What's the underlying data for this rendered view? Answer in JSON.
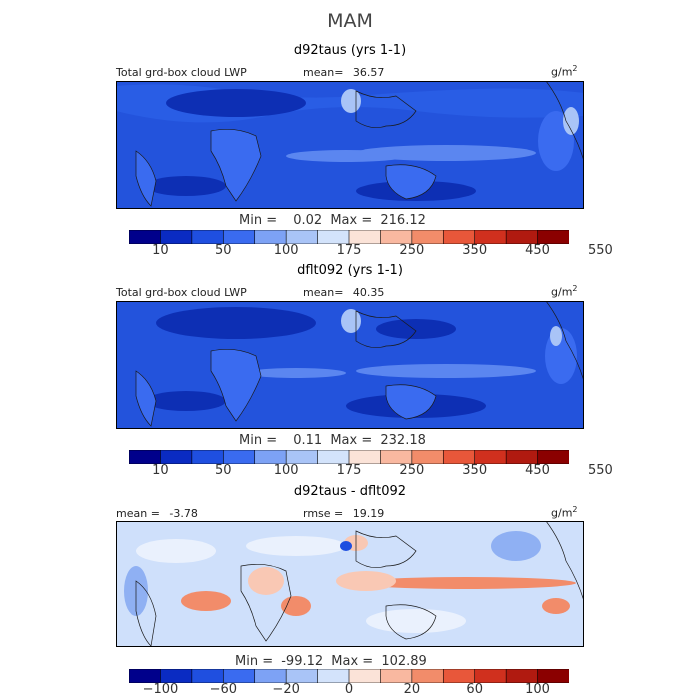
{
  "title": "MAM",
  "panels": [
    {
      "id": "top",
      "subtitle": "d92taus (yrs 1-1)",
      "left_label": "Total grd-box cloud LWP",
      "mean_label": "mean=",
      "mean_value": "36.57",
      "units": "g/m",
      "units_sup": "2",
      "min_label": "Min =",
      "min_value": "0.02",
      "max_label": "Max =",
      "max_value": "216.12"
    },
    {
      "id": "middle",
      "subtitle": "dflt092 (yrs 1-1)",
      "left_label": "Total grd-box cloud LWP",
      "mean_label": "mean=",
      "mean_value": "40.35",
      "units": "g/m",
      "units_sup": "2",
      "min_label": "Min =",
      "min_value": "0.11",
      "max_label": "Max =",
      "max_value": "232.18"
    },
    {
      "id": "bottom",
      "subtitle": "d92taus - dflt092",
      "mean_label": "mean =",
      "mean_value": "-3.78",
      "rmse_label": "rmse =",
      "rmse_value": "19.19",
      "units": "g/m",
      "units_sup": "2",
      "min_label": "Min =",
      "min_value": "-99.12",
      "max_label": "Max =",
      "max_value": "102.89"
    }
  ],
  "colorbar_abs": {
    "colors": [
      "#00008b",
      "#0a2bc2",
      "#1f4fe0",
      "#3a6bf0",
      "#7da2f5",
      "#a9c4f7",
      "#d3e3fb",
      "#fbe3d8",
      "#f9b8a0",
      "#f28c6a",
      "#e8573a",
      "#d0301e",
      "#b01a10",
      "#8b0000"
    ],
    "ticks": [
      "10",
      "50",
      "100",
      "175",
      "250",
      "350",
      "450",
      "550"
    ]
  },
  "colorbar_diff": {
    "colors": [
      "#00008b",
      "#0a2bc2",
      "#1f4fe0",
      "#3a6bf0",
      "#7da2f5",
      "#a9c4f7",
      "#d3e3fb",
      "#fbe3d8",
      "#f9b8a0",
      "#f28c6a",
      "#e8573a",
      "#d0301e",
      "#b01a10",
      "#8b0000"
    ],
    "ticks": [
      "−100",
      "−60",
      "−20",
      "0",
      "20",
      "60",
      "100"
    ]
  },
  "map_colors": {
    "abs_base": "#2353dc",
    "abs_dark": "#0d2fb4",
    "abs_light": "#5b86f0",
    "abs_pale": "#a9c4f7",
    "diff_base": "#cfe0fb",
    "diff_light": "#eaf1fd",
    "diff_blue": "#8fb0f3",
    "diff_red": "#f28c6a",
    "diff_pink": "#f9c8b4",
    "coast": "#1a1a1a"
  }
}
